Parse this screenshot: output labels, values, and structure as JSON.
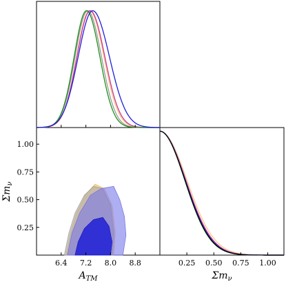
{
  "chart_data": [
    {
      "panel": "marginal-A_TM",
      "type": "line",
      "xlabel": "",
      "ylabel": "",
      "xlim": [
        5.6,
        9.6
      ],
      "ylim": [
        0,
        1.08
      ],
      "xticks": [
        6.4,
        7.2,
        8.0,
        8.8
      ],
      "series": [
        {
          "color": "#f5c77e",
          "mean": 7.32,
          "sd": 0.42,
          "skew": 0.3
        },
        {
          "color": "#999999",
          "mean": 7.26,
          "sd": 0.41,
          "skew": 0.25
        },
        {
          "color": "#cc3399",
          "mean": 7.34,
          "sd": 0.43,
          "skew": 0.3
        },
        {
          "color": "#1a8f1a",
          "mean": 7.22,
          "sd": 0.4,
          "skew": 0.25
        },
        {
          "color": "#1f1fd6",
          "mean": 7.42,
          "sd": 0.47,
          "skew": 0.45
        }
      ]
    },
    {
      "panel": "joint-A_TM-sum_mnu",
      "type": "area",
      "xlabel": "A_TM",
      "ylabel": "Σm_ν",
      "xlim": [
        5.6,
        9.6
      ],
      "ylim": [
        0.0,
        1.15
      ],
      "xticks": [
        "6.4",
        "7.2",
        "8.0",
        "8.8"
      ],
      "yticks": [
        "0.25",
        "0.50",
        "0.75",
        "1.00"
      ],
      "contours": [
        {
          "color": "#f5c77e",
          "level": "95%",
          "points": [
            [
              6.55,
              0.0
            ],
            [
              6.7,
              0.2
            ],
            [
              6.9,
              0.38
            ],
            [
              7.2,
              0.55
            ],
            [
              7.5,
              0.64
            ],
            [
              7.8,
              0.6
            ],
            [
              8.05,
              0.45
            ],
            [
              8.15,
              0.2
            ],
            [
              8.1,
              0.0
            ]
          ]
        },
        {
          "color": "#aaaaaa",
          "level": "95%",
          "points": [
            [
              6.5,
              0.0
            ],
            [
              6.65,
              0.2
            ],
            [
              6.85,
              0.38
            ],
            [
              7.15,
              0.54
            ],
            [
              7.45,
              0.62
            ],
            [
              7.75,
              0.6
            ],
            [
              8.0,
              0.45
            ],
            [
              8.1,
              0.2
            ],
            [
              8.05,
              0.0
            ]
          ]
        },
        {
          "color": "#8f8ff0",
          "level": "95%",
          "points": [
            [
              6.6,
              0.0
            ],
            [
              6.75,
              0.2
            ],
            [
              7.0,
              0.38
            ],
            [
              7.35,
              0.54
            ],
            [
              7.7,
              0.6
            ],
            [
              8.1,
              0.62
            ],
            [
              8.3,
              0.5
            ],
            [
              8.45,
              0.35
            ],
            [
              8.5,
              0.18
            ],
            [
              8.4,
              0.0
            ]
          ]
        },
        {
          "color": "#1f1fd6",
          "level": "68%",
          "points": [
            [
              6.85,
              0.0
            ],
            [
              6.95,
              0.12
            ],
            [
              7.15,
              0.24
            ],
            [
              7.45,
              0.32
            ],
            [
              7.75,
              0.34
            ],
            [
              7.95,
              0.26
            ],
            [
              8.05,
              0.12
            ],
            [
              8.0,
              0.0
            ]
          ]
        }
      ]
    },
    {
      "panel": "marginal-sum_mnu",
      "type": "line",
      "xlabel": "Σm_ν",
      "ylabel": "",
      "xlim": [
        0.0,
        1.15
      ],
      "ylim": [
        0,
        1.05
      ],
      "xticks": [
        "0.25",
        "0.50",
        "0.75",
        "1.00"
      ],
      "series": [
        {
          "color": "#f5c77e",
          "scale": 0.25
        },
        {
          "color": "#999999",
          "scale": 0.235
        },
        {
          "color": "#cc3399",
          "scale": 0.24
        },
        {
          "color": "#1a8f1a",
          "scale": 0.23
        },
        {
          "color": "#1f1fd6",
          "scale": 0.235
        },
        {
          "color": "#000000",
          "scale": 0.232
        }
      ]
    }
  ]
}
